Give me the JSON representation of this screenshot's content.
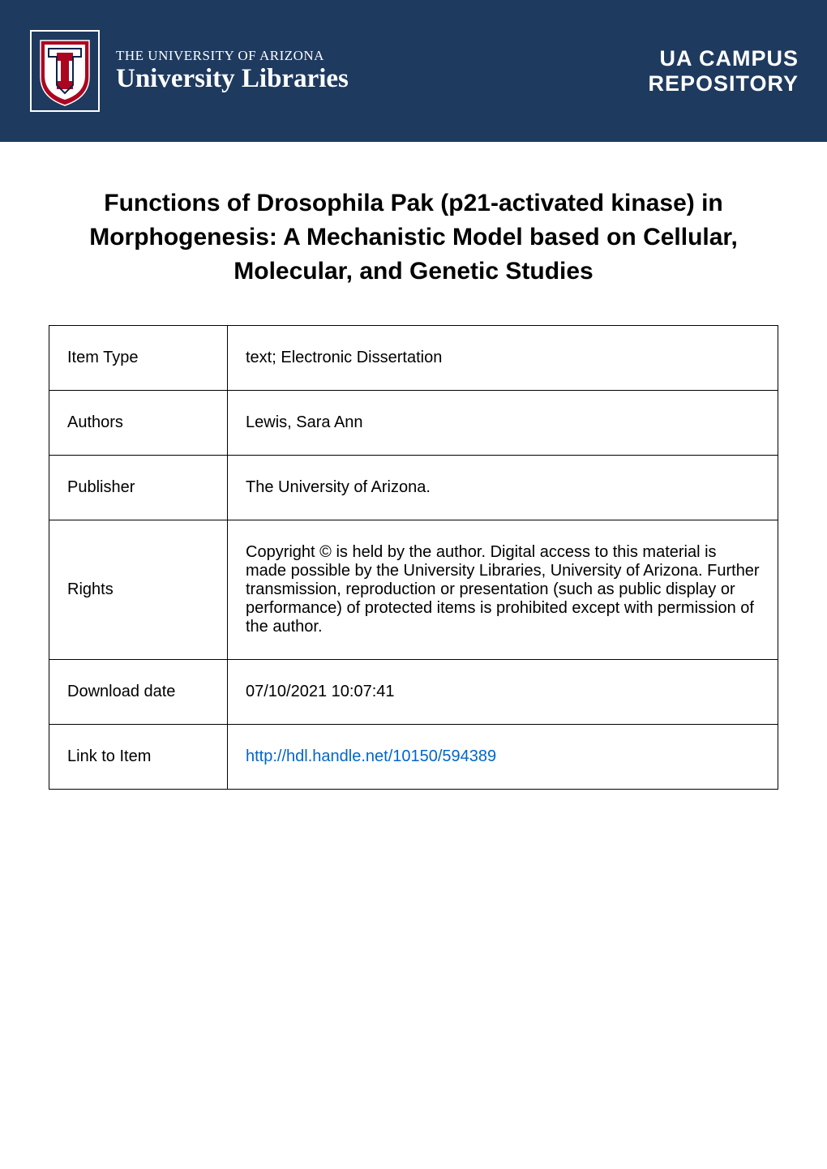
{
  "header": {
    "logo_subtitle": "THE UNIVERSITY OF ARIZONA",
    "logo_title": "University Libraries",
    "campus_line1": "UA CAMPUS",
    "campus_line2": "REPOSITORY",
    "banner_color": "#1e3a5f",
    "text_color": "#ffffff"
  },
  "title": "Functions of Drosophila Pak (p21-activated kinase) in Morphogenesis: A Mechanistic Model based on Cellular, Molecular, and Genetic Studies",
  "metadata": {
    "rows": [
      {
        "label": "Item Type",
        "value": "text; Electronic Dissertation",
        "is_link": false
      },
      {
        "label": "Authors",
        "value": "Lewis, Sara Ann",
        "is_link": false
      },
      {
        "label": "Publisher",
        "value": "The University of Arizona.",
        "is_link": false
      },
      {
        "label": "Rights",
        "value": "Copyright © is held by the author. Digital access to this material is made possible by the University Libraries, University of Arizona. Further transmission, reproduction or presentation (such as public display or performance) of protected items is prohibited except with permission of the author.",
        "is_link": false
      },
      {
        "label": "Download date",
        "value": "07/10/2021 10:07:41",
        "is_link": false
      },
      {
        "label": "Link to Item",
        "value": "http://hdl.handle.net/10150/594389",
        "is_link": true
      }
    ]
  },
  "styling": {
    "title_fontsize": 30,
    "title_color": "#000000",
    "table_border_color": "#000000",
    "table_font_size": 20,
    "link_color": "#0066cc",
    "label_column_width": 220,
    "cell_padding": "28px 22px",
    "background_color": "#ffffff"
  },
  "logo_colors": {
    "shield_outer": "#ab0520",
    "shield_inner": "#ffffff",
    "logo_blue": "#0c234b"
  }
}
